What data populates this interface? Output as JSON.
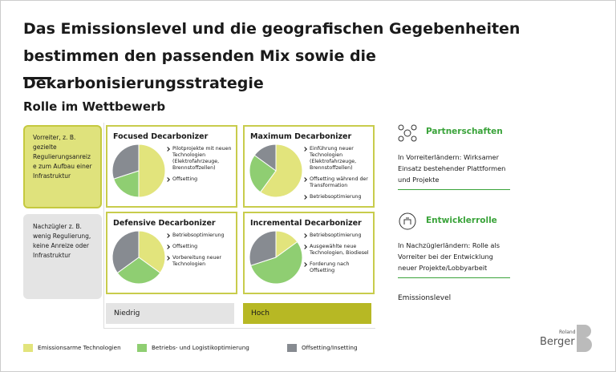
{
  "header": {
    "title": "Das Emissionslevel und die geografischen Gegebenheiten bestimmen den passenden Mix sowie die Dekarbonisierungsstrategie",
    "subtitle": "Rolle im Wettbewerb"
  },
  "roles": [
    "Vorreiter, z. B. gezielte Regulierungsanreize zum Aufbau einer Infrastruktur",
    "Nachzügler z. B. wenig Regulierung, keine Anreize oder Infrastruktur"
  ],
  "quadrants": [
    {
      "title": "Focused Decarbonizer",
      "bullets": [
        "Pilotprojekte mit neuen Technologien (Elektrofahrzeuge, Brennstoffzellen)",
        "Offsetting"
      ],
      "pie": [
        50,
        20,
        30
      ]
    },
    {
      "title": "Maximum Decarbonizer",
      "bullets": [
        "Einführung neuer Technologien (Elektrofahrzeuge, Brennstoffzellen)",
        "Offsetting während der Transformation",
        "Betriebsoptimierung"
      ],
      "pie": [
        60,
        25,
        15
      ]
    },
    {
      "title": "Defensive Decarbonizer",
      "bullets": [
        "Betriebsoptimierung",
        "Offsetting",
        "Vorbereitung neuer Technologien"
      ],
      "pie": [
        35,
        30,
        35
      ]
    },
    {
      "title": "Incremental Decarbonizer",
      "bullets": [
        "Betriebsoptimierung",
        "Ausgewählte neue Technologien, Biodiesel",
        "Forderung nach Offsetting"
      ],
      "pie": [
        15,
        55,
        30
      ]
    }
  ],
  "axis": {
    "low": "Niedrig",
    "high": "Hoch",
    "label": "Emissionslevel"
  },
  "side": [
    {
      "title": "Partnerschaften",
      "text": "In Vorreiterländern: Wirksamer Einsatz bestehender Plattformen und Projekte"
    },
    {
      "title": "Entwicklerrolle",
      "text": "In Nachzüglerländern: Rolle als Vorreiter bei der Entwicklung neuer Projekte/Lobbyarbeit"
    }
  ],
  "legend": [
    {
      "label": "Emissionsarme Technologien",
      "color": "#e2e47c"
    },
    {
      "label": "Betriebs- und Logistikoptimierung",
      "color": "#8fce72"
    },
    {
      "label": "Offsetting/Insetting",
      "color": "#878b91"
    }
  ],
  "logo": {
    "small": "Roland",
    "big": "Berger"
  }
}
